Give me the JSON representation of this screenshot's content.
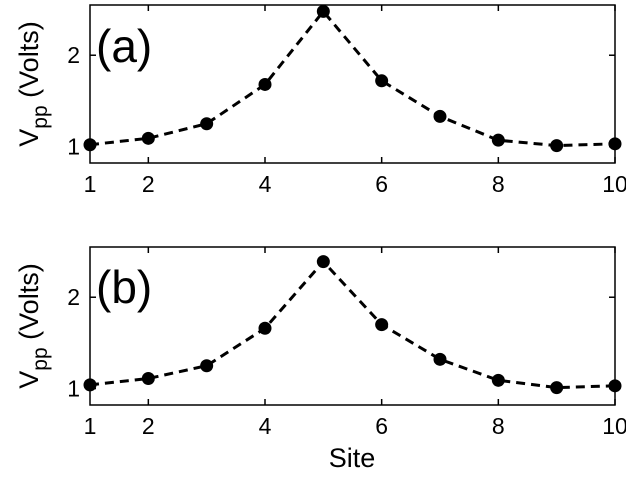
{
  "chart_data": [
    {
      "type": "line",
      "panel_label": "(a)",
      "x": [
        1,
        2,
        3,
        4,
        5,
        6,
        7,
        8,
        9,
        10
      ],
      "values": [
        1.02,
        1.09,
        1.25,
        1.68,
        2.48,
        1.72,
        1.33,
        1.07,
        1.01,
        1.03
      ],
      "xlim": [
        1,
        10
      ],
      "ylim": [
        0.82,
        2.55
      ],
      "xticks": [
        2,
        4,
        6,
        8,
        10
      ],
      "yticks": [
        1,
        2
      ],
      "ylabel_main": "V",
      "ylabel_sub": "pp",
      "ylabel_unit": " (Volts)",
      "xlabel": "",
      "line_style": "dashed",
      "marker": "filled-circle",
      "color": "#000000",
      "grid": false
    },
    {
      "type": "line",
      "panel_label": "(b)",
      "x": [
        1,
        2,
        3,
        4,
        5,
        6,
        7,
        8,
        9,
        10
      ],
      "values": [
        1.04,
        1.11,
        1.25,
        1.66,
        2.39,
        1.7,
        1.32,
        1.09,
        1.01,
        1.03
      ],
      "xlim": [
        1,
        10
      ],
      "ylim": [
        0.82,
        2.55
      ],
      "xticks": [
        2,
        4,
        6,
        8,
        10
      ],
      "yticks": [
        1,
        2
      ],
      "ylabel_main": "V",
      "ylabel_sub": "pp",
      "ylabel_unit": " (Volts)",
      "xlabel": "Site",
      "line_style": "dashed",
      "marker": "filled-circle",
      "color": "#000000",
      "grid": false
    }
  ]
}
